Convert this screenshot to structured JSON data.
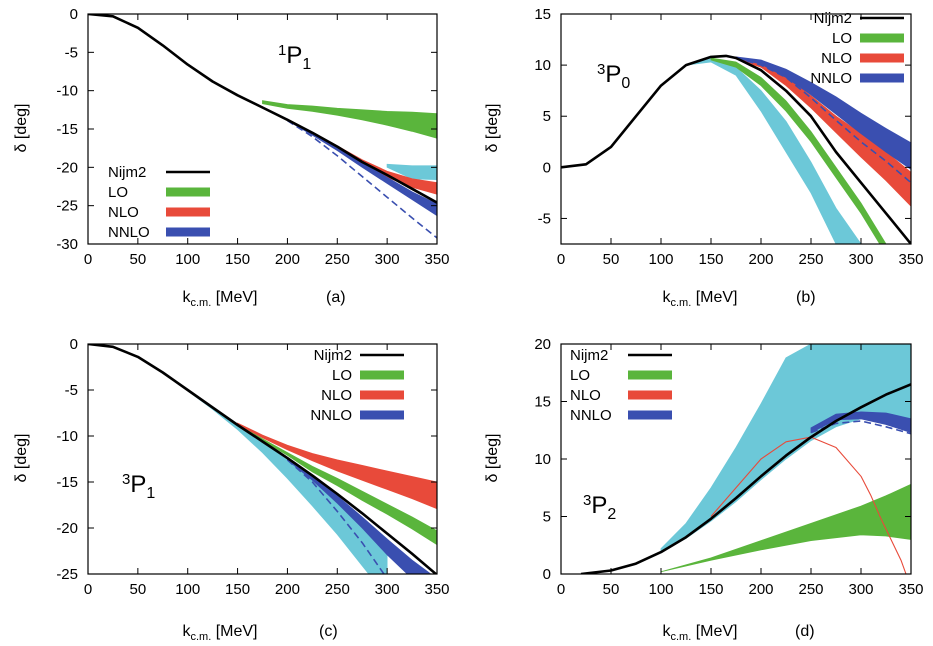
{
  "colors": {
    "Nijm2": "#000000",
    "LO": "#5ab53c",
    "NLO": "#e84a3a",
    "NNLO": "#3a4fb0",
    "extra_band": "#6cc8d8",
    "axis": "#000000"
  },
  "chart_data": [
    {
      "type": "line",
      "panel_tag": "(a)",
      "title": {
        "sup": "1",
        "main": "P",
        "sub": "1"
      },
      "xlabel": {
        "main": "k",
        "sub": "c.m.",
        "unit": " [MeV]"
      },
      "ylabel": "δ [deg]",
      "xlim": [
        0,
        350
      ],
      "ylim": [
        -30,
        0
      ],
      "xticks": [
        0,
        50,
        100,
        150,
        200,
        250,
        300,
        350
      ],
      "yticks": [
        -30,
        -25,
        -20,
        -15,
        -10,
        -5,
        0
      ],
      "legend": {
        "position": "bottom-left",
        "entries": [
          "Nijm2",
          "LO",
          "NLO",
          "NNLO"
        ]
      },
      "series": [
        {
          "name": "Nijm2",
          "style": "line",
          "x": [
            0,
            25,
            50,
            75,
            100,
            125,
            150,
            175,
            200,
            225,
            250,
            275,
            300,
            325,
            350
          ],
          "y": [
            0,
            -0.3,
            -1.8,
            -4.1,
            -6.6,
            -8.8,
            -10.6,
            -12.2,
            -13.8,
            -15.5,
            -17.3,
            -19.3,
            -21.0,
            -22.8,
            -24.6
          ]
        },
        {
          "name": "LO",
          "style": "band",
          "x": [
            175,
            200,
            225,
            250,
            275,
            300,
            325,
            350
          ],
          "lower": [
            -11.7,
            -12.3,
            -12.7,
            -13.2,
            -13.8,
            -14.5,
            -15.3,
            -16.2
          ],
          "upper": [
            -11.3,
            -11.8,
            -12.0,
            -12.3,
            -12.5,
            -12.7,
            -12.8,
            -13.0
          ]
        },
        {
          "name": "NLO",
          "style": "band",
          "x": [
            200,
            225,
            250,
            275,
            300,
            325,
            350
          ],
          "lower": [
            -13.9,
            -15.7,
            -17.6,
            -19.6,
            -21.3,
            -22.6,
            -23.5
          ],
          "upper": [
            -13.7,
            -15.4,
            -17.2,
            -19.0,
            -20.5,
            -21.5,
            -22.0
          ]
        },
        {
          "name": "NNLO",
          "style": "band",
          "x": [
            200,
            225,
            250,
            275,
            300,
            325,
            350
          ],
          "lower": [
            -13.9,
            -15.8,
            -17.8,
            -20.0,
            -22.1,
            -24.2,
            -26.3
          ],
          "upper": [
            -13.7,
            -15.5,
            -17.4,
            -19.4,
            -21.3,
            -23.2,
            -24.8
          ]
        },
        {
          "name": "NNLO-dashed",
          "style": "dashed",
          "color_key": "NNLO",
          "x": [
            200,
            225,
            250,
            275,
            300,
            325,
            350
          ],
          "y": [
            -13.9,
            -16.0,
            -18.5,
            -21.2,
            -23.9,
            -26.6,
            -29.2
          ]
        },
        {
          "name": "extra",
          "style": "band",
          "color_key": "extra_band",
          "x": [
            300,
            325,
            350
          ],
          "lower": [
            -20.0,
            -21.5,
            -21.6
          ],
          "upper": [
            -19.6,
            -19.8,
            -19.8
          ]
        }
      ]
    },
    {
      "type": "line",
      "panel_tag": "(b)",
      "title": {
        "sup": "3",
        "main": "P",
        "sub": "0"
      },
      "xlabel": {
        "main": "k",
        "sub": "c.m.",
        "unit": " [MeV]"
      },
      "ylabel": "δ [deg]",
      "xlim": [
        0,
        350
      ],
      "ylim": [
        -7.5,
        15
      ],
      "xticks": [
        0,
        50,
        100,
        150,
        200,
        250,
        300,
        350
      ],
      "yticks": [
        -5,
        0,
        5,
        10,
        15
      ],
      "legend": {
        "position": "top-right",
        "entries": [
          "Nijm2",
          "LO",
          "NLO",
          "NNLO"
        ]
      },
      "series": [
        {
          "name": "Nijm2",
          "style": "line",
          "x": [
            0,
            25,
            50,
            75,
            100,
            125,
            150,
            165,
            175,
            200,
            225,
            250,
            275,
            300,
            325,
            350
          ],
          "y": [
            0,
            0.3,
            2.0,
            5.0,
            8.0,
            10.0,
            10.8,
            10.9,
            10.7,
            9.5,
            7.5,
            5.0,
            1.5,
            -1.5,
            -4.5,
            -7.5
          ]
        },
        {
          "name": "extra",
          "style": "band",
          "color_key": "extra_band",
          "x": [
            100,
            125,
            150,
            175,
            200,
            225,
            250,
            275,
            300
          ],
          "lower": [
            8.0,
            10.0,
            10.3,
            9.0,
            5.5,
            1.5,
            -2.5,
            -7.5,
            -12.0
          ],
          "upper": [
            8.0,
            10.0,
            10.6,
            9.8,
            7.5,
            4.5,
            0.5,
            -4.0,
            -7.5
          ]
        },
        {
          "name": "LO",
          "style": "band",
          "x": [
            150,
            175,
            200,
            225,
            250,
            275,
            300,
            325
          ],
          "lower": [
            10.5,
            9.8,
            8.0,
            5.5,
            2.5,
            -1.0,
            -4.5,
            -8.5
          ],
          "upper": [
            10.7,
            10.3,
            8.8,
            6.5,
            3.5,
            0.0,
            -3.5,
            -7.5
          ]
        },
        {
          "name": "NLO",
          "style": "band",
          "x": [
            175,
            200,
            225,
            250,
            275,
            300,
            325,
            350
          ],
          "lower": [
            10.6,
            9.8,
            8.0,
            5.8,
            3.4,
            1.0,
            -1.3,
            -3.8
          ],
          "upper": [
            10.8,
            10.2,
            8.8,
            7.0,
            5.0,
            3.3,
            1.5,
            -0.5
          ]
        },
        {
          "name": "NNLO",
          "style": "band",
          "x": [
            175,
            200,
            225,
            250,
            275,
            300,
            325,
            350
          ],
          "lower": [
            10.7,
            10.1,
            8.8,
            7.1,
            5.2,
            3.3,
            1.5,
            -0.2
          ],
          "upper": [
            10.8,
            10.5,
            9.6,
            8.3,
            6.9,
            5.3,
            3.8,
            2.4
          ]
        },
        {
          "name": "NNLO-dashed",
          "style": "dashed",
          "color_key": "NNLO",
          "x": [
            175,
            200,
            225,
            250,
            275,
            300,
            325,
            350
          ],
          "y": [
            10.7,
            10.0,
            8.8,
            6.8,
            4.6,
            2.5,
            0.6,
            -1.5
          ]
        }
      ]
    },
    {
      "type": "line",
      "panel_tag": "(c)",
      "title": {
        "sup": "3",
        "main": "P",
        "sub": "1"
      },
      "xlabel": {
        "main": "k",
        "sub": "c.m.",
        "unit": " [MeV]"
      },
      "ylabel": "δ [deg]",
      "xlim": [
        0,
        350
      ],
      "ylim": [
        -25,
        0
      ],
      "xticks": [
        0,
        50,
        100,
        150,
        200,
        250,
        300,
        350
      ],
      "yticks": [
        -25,
        -20,
        -15,
        -10,
        -5,
        0
      ],
      "legend": {
        "position": "top-right",
        "entries": [
          "Nijm2",
          "LO",
          "NLO",
          "NNLO"
        ]
      },
      "series": [
        {
          "name": "Nijm2",
          "style": "line",
          "x": [
            0,
            25,
            50,
            75,
            100,
            125,
            150,
            175,
            200,
            225,
            250,
            275,
            300,
            325,
            350
          ],
          "y": [
            0,
            -0.3,
            -1.4,
            -3.1,
            -5.0,
            -6.9,
            -8.8,
            -10.6,
            -12.4,
            -14.3,
            -16.3,
            -18.4,
            -20.6,
            -22.8,
            -25.1
          ]
        },
        {
          "name": "extra",
          "style": "band",
          "color_key": "extra_band",
          "x": [
            100,
            125,
            150,
            175,
            200,
            225,
            250,
            275,
            300
          ],
          "lower": [
            -5.1,
            -7.1,
            -9.3,
            -11.8,
            -14.6,
            -17.6,
            -20.7,
            -24.1,
            -27.5
          ],
          "upper": [
            -5.0,
            -6.9,
            -8.8,
            -10.7,
            -12.6,
            -14.6,
            -16.7,
            -18.9,
            -21.2
          ]
        },
        {
          "name": "LO",
          "style": "band",
          "x": [
            150,
            175,
            200,
            225,
            250,
            275,
            300,
            325,
            350
          ],
          "lower": [
            -8.8,
            -10.5,
            -12.1,
            -13.9,
            -15.4,
            -17.0,
            -18.5,
            -20.1,
            -21.8
          ],
          "upper": [
            -8.7,
            -10.3,
            -11.8,
            -13.3,
            -14.6,
            -16.0,
            -17.4,
            -18.8,
            -20.3
          ]
        },
        {
          "name": "NLO",
          "style": "band",
          "x": [
            150,
            175,
            200,
            225,
            250,
            275,
            300,
            325,
            350
          ],
          "lower": [
            -8.7,
            -10.2,
            -11.5,
            -12.7,
            -13.8,
            -14.8,
            -15.8,
            -16.8,
            -17.9
          ],
          "upper": [
            -8.6,
            -9.9,
            -11.0,
            -11.9,
            -12.6,
            -13.2,
            -13.8,
            -14.4,
            -15.0
          ]
        },
        {
          "name": "NNLO",
          "style": "band",
          "x": [
            200,
            225,
            250,
            275,
            300,
            325,
            350
          ],
          "lower": [
            -12.6,
            -14.8,
            -17.3,
            -20.0,
            -22.9,
            -25.5,
            -27.0
          ],
          "upper": [
            -12.4,
            -14.4,
            -16.5,
            -18.8,
            -21.2,
            -23.5,
            -25.5
          ]
        },
        {
          "name": "NNLO-dashed",
          "style": "dashed",
          "color_key": "NNLO",
          "x": [
            200,
            225,
            250,
            275,
            300
          ],
          "y": [
            -12.6,
            -15.0,
            -18.2,
            -21.6,
            -25.5
          ]
        }
      ]
    },
    {
      "type": "line",
      "panel_tag": "(d)",
      "title": {
        "sup": "3",
        "main": "P",
        "sub": "2"
      },
      "xlabel": {
        "main": "k",
        "sub": "c.m.",
        "unit": " [MeV]"
      },
      "ylabel": "δ [deg]",
      "xlim": [
        0,
        350
      ],
      "ylim": [
        0,
        20
      ],
      "xticks": [
        0,
        50,
        100,
        150,
        200,
        250,
        300,
        350
      ],
      "yticks": [
        0,
        5,
        10,
        15,
        20
      ],
      "legend": {
        "position": "top-left",
        "entries": [
          "Nijm2",
          "LO",
          "NLO",
          "NNLO"
        ]
      },
      "series": [
        {
          "name": "Nijm2",
          "style": "line",
          "x": [
            20,
            50,
            75,
            100,
            125,
            150,
            175,
            200,
            225,
            250,
            275,
            300,
            325,
            350
          ],
          "y": [
            0,
            0.3,
            0.9,
            1.9,
            3.2,
            4.8,
            6.6,
            8.5,
            10.3,
            11.9,
            13.3,
            14.5,
            15.6,
            16.5
          ]
        },
        {
          "name": "extra",
          "style": "band",
          "color_key": "extra_band",
          "x": [
            100,
            125,
            150,
            175,
            200,
            225,
            250,
            275,
            300,
            325,
            350
          ],
          "lower": [
            1.9,
            3.1,
            4.6,
            6.3,
            8.2,
            10.0,
            11.6,
            12.8,
            13.5,
            13.4,
            13.0
          ],
          "upper": [
            2.2,
            4.4,
            7.5,
            11.0,
            14.8,
            18.8,
            20,
            20,
            20,
            20,
            20
          ]
        },
        {
          "name": "LO",
          "style": "band",
          "x": [
            100,
            150,
            200,
            250,
            300,
            325,
            350
          ],
          "lower": [
            0.2,
            1.2,
            2.1,
            2.9,
            3.4,
            3.3,
            3.0
          ],
          "upper": [
            0.2,
            1.4,
            2.9,
            4.4,
            5.9,
            6.8,
            7.8
          ]
        },
        {
          "name": "NNLO",
          "style": "band",
          "x": [
            250,
            275,
            300,
            325,
            350
          ],
          "lower": [
            12.3,
            13.4,
            13.5,
            13.0,
            12.3
          ],
          "upper": [
            12.7,
            13.9,
            14.1,
            14.0,
            13.5
          ]
        },
        {
          "name": "NNLO-dashed",
          "style": "dashed",
          "color_key": "NNLO",
          "x": [
            250,
            275,
            300,
            325,
            350
          ],
          "y": [
            12.3,
            13.1,
            13.3,
            12.8,
            12.2
          ]
        },
        {
          "name": "NLO",
          "style": "thin",
          "x": [
            150,
            200,
            225,
            250,
            275,
            300,
            310,
            320,
            330,
            340,
            345
          ],
          "y": [
            5.0,
            10.0,
            11.5,
            11.9,
            11.0,
            8.5,
            6.8,
            4.8,
            3.0,
            1.2,
            0
          ]
        }
      ]
    }
  ]
}
